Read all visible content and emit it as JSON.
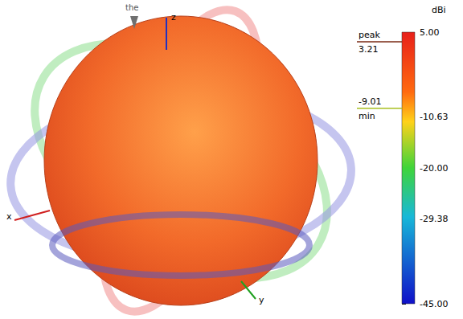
{
  "chart_data": {
    "type": "radiation_pattern",
    "colorbar": {
      "label": "dBi",
      "range": [
        -45,
        5
      ],
      "ticks": [
        {
          "value": 5,
          "label": "5.00"
        },
        -10.63,
        {
          "value": -20,
          "label": "-20.00"
        },
        -29.38,
        {
          "value": -45,
          "label": "-45.00"
        }
      ]
    },
    "peak": {
      "label": "peak",
      "value": 3.21
    },
    "min": {
      "label": "min",
      "value": -9.01
    },
    "axis_labels": {
      "x": "x",
      "y": "y",
      "z": "z"
    },
    "annotation": "the"
  }
}
